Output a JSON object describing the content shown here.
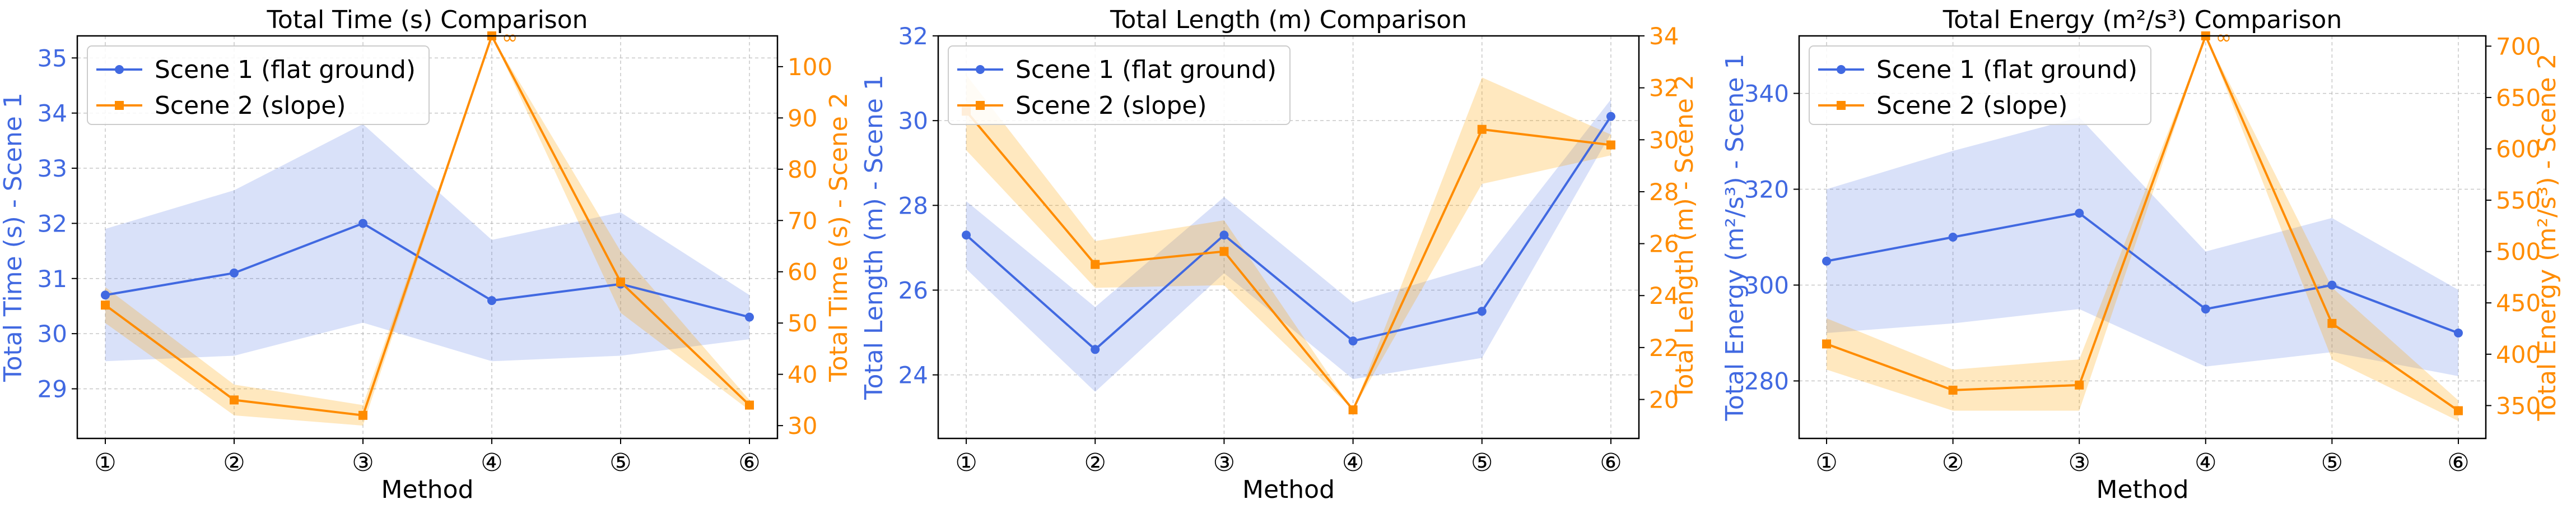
{
  "colors": {
    "scene1": "#4169E1",
    "scene2": "#FF8C00",
    "scene1_band": "#4169E1",
    "scene2_band": "#FFA500",
    "grid": "#b0b0b0",
    "axis": "#000000"
  },
  "chart_data": [
    {
      "type": "line",
      "title": "Total Time (s) Comparison",
      "xlabel": "Method",
      "ylabel_left": "Total Time (s) - Scene 1",
      "ylabel_right": "Total Time (s) - Scene 2",
      "categories": [
        "①",
        "②",
        "③",
        "④",
        "⑤",
        "⑥"
      ],
      "y_left": {
        "range": [
          28.1,
          35.4
        ],
        "ticks": [
          29,
          30,
          31,
          32,
          33,
          34,
          35
        ]
      },
      "y_right": {
        "range": [
          27.5,
          106
        ],
        "ticks": [
          30,
          40,
          50,
          60,
          70,
          80,
          90,
          100
        ]
      },
      "legend": [
        "Scene 1 (flat ground)",
        "Scene 2 (slope)"
      ],
      "legend_position": "upper-left",
      "series": [
        {
          "name": "Scene 1 (flat ground)",
          "axis": "left",
          "marker": "circle",
          "values": [
            30.7,
            31.1,
            32.0,
            30.6,
            30.9,
            30.3
          ],
          "lower": [
            29.5,
            29.6,
            30.2,
            29.5,
            29.6,
            29.9
          ],
          "upper": [
            31.9,
            32.6,
            33.8,
            31.7,
            32.2,
            30.7
          ]
        },
        {
          "name": "Scene 2 (slope)",
          "axis": "right",
          "marker": "square",
          "values": [
            53.5,
            35.0,
            32.0,
            106,
            58.0,
            34.0
          ],
          "lower": [
            50.0,
            32.0,
            30.0,
            106,
            52.0,
            33.0
          ],
          "upper": [
            57.0,
            38.0,
            34.0,
            106,
            64.0,
            35.0
          ]
        }
      ],
      "annotation": {
        "category_index": 3,
        "text": "∞"
      }
    },
    {
      "type": "line",
      "title": "Total Length (m) Comparison",
      "xlabel": "Method",
      "ylabel_left": "Total Length (m) - Scene 1",
      "ylabel_right": "Total Length (m) - Scene 2",
      "categories": [
        "①",
        "②",
        "③",
        "④",
        "⑤",
        "⑥"
      ],
      "y_left": {
        "range": [
          22.5,
          32.0
        ],
        "ticks": [
          24,
          26,
          28,
          30,
          32
        ]
      },
      "y_right": {
        "range": [
          18.5,
          34.0
        ],
        "ticks": [
          20,
          22,
          24,
          26,
          28,
          30,
          32,
          34
        ]
      },
      "legend": [
        "Scene 1 (flat ground)",
        "Scene 2 (slope)"
      ],
      "legend_position": "upper-left",
      "series": [
        {
          "name": "Scene 1 (flat ground)",
          "axis": "left",
          "marker": "circle",
          "values": [
            27.3,
            24.6,
            27.3,
            24.8,
            25.5,
            30.1
          ],
          "lower": [
            26.5,
            23.6,
            26.4,
            23.9,
            24.4,
            29.7
          ],
          "upper": [
            28.1,
            25.6,
            28.2,
            25.7,
            26.6,
            30.5
          ]
        },
        {
          "name": "Scene 2 (slope)",
          "axis": "right",
          "marker": "square",
          "values": [
            31.1,
            25.2,
            25.7,
            19.6,
            30.4,
            29.8
          ],
          "lower": [
            29.6,
            24.3,
            24.4,
            19.6,
            28.3,
            29.4
          ],
          "upper": [
            32.5,
            26.1,
            26.9,
            19.6,
            32.4,
            30.2
          ]
        }
      ]
    },
    {
      "type": "line",
      "title": "Total Energy (m²/s³) Comparison",
      "xlabel": "Method",
      "ylabel_left": "Total Energy (m²/s³) - Scene 1",
      "ylabel_right": "Total Energy (m²/s³) - Scene 2",
      "categories": [
        "①",
        "②",
        "③",
        "④",
        "⑤",
        "⑥"
      ],
      "y_left": {
        "range": [
          268,
          352
        ],
        "ticks": [
          280,
          300,
          320,
          340
        ]
      },
      "y_right": {
        "range": [
          318,
          710
        ],
        "ticks": [
          350,
          400,
          450,
          500,
          550,
          600,
          650,
          700
        ]
      },
      "legend": [
        "Scene 1 (flat ground)",
        "Scene 2 (slope)"
      ],
      "legend_position": "upper-left",
      "series": [
        {
          "name": "Scene 1 (flat ground)",
          "axis": "left",
          "marker": "circle",
          "values": [
            305,
            310,
            315,
            295,
            300,
            290
          ],
          "lower": [
            290,
            292,
            295,
            283,
            286,
            281
          ],
          "upper": [
            320,
            328,
            335,
            307,
            314,
            299
          ]
        },
        {
          "name": "Scene 2 (slope)",
          "axis": "right",
          "marker": "square",
          "values": [
            410,
            365,
            370,
            710,
            430,
            345
          ],
          "lower": [
            385,
            345,
            345,
            710,
            395,
            335
          ],
          "upper": [
            435,
            385,
            395,
            710,
            465,
            355
          ]
        }
      ],
      "annotation": {
        "category_index": 3,
        "text": "∞"
      }
    }
  ]
}
